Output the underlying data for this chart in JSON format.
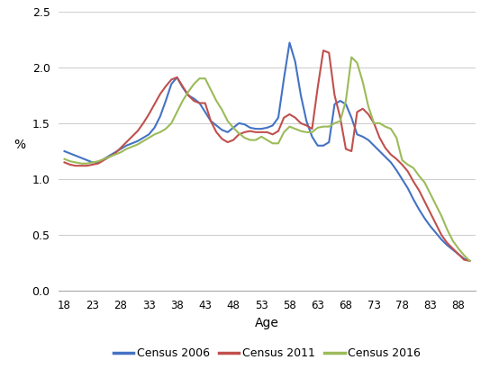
{
  "title": "",
  "xlabel": "Age",
  "ylabel": "%",
  "xlim": [
    17,
    91
  ],
  "ylim": [
    0,
    2.5
  ],
  "yticks": [
    0,
    0.5,
    1,
    1.5,
    2,
    2.5
  ],
  "xticks": [
    18,
    23,
    28,
    33,
    38,
    43,
    48,
    53,
    58,
    63,
    68,
    73,
    78,
    83,
    88
  ],
  "colors": {
    "census2006": "#4472C4",
    "census2011": "#C0504D",
    "census2016": "#9BBB59"
  },
  "legend": [
    "Census 2006",
    "Census 2011",
    "Census 2016"
  ],
  "census2006": {
    "ages": [
      18,
      19,
      20,
      21,
      22,
      23,
      24,
      25,
      26,
      27,
      28,
      29,
      30,
      31,
      32,
      33,
      34,
      35,
      36,
      37,
      38,
      39,
      40,
      41,
      42,
      43,
      44,
      45,
      46,
      47,
      48,
      49,
      50,
      51,
      52,
      53,
      54,
      55,
      56,
      57,
      58,
      59,
      60,
      61,
      62,
      63,
      64,
      65,
      66,
      67,
      68,
      69,
      70,
      71,
      72,
      73,
      74,
      75,
      76,
      77,
      78,
      79,
      80,
      81,
      82,
      83,
      84,
      85,
      86,
      87,
      88,
      89,
      90
    ],
    "values": [
      1.25,
      1.23,
      1.21,
      1.19,
      1.17,
      1.15,
      1.15,
      1.18,
      1.21,
      1.24,
      1.27,
      1.3,
      1.32,
      1.34,
      1.37,
      1.4,
      1.46,
      1.56,
      1.7,
      1.85,
      1.91,
      1.82,
      1.75,
      1.72,
      1.68,
      1.6,
      1.52,
      1.48,
      1.44,
      1.42,
      1.46,
      1.5,
      1.49,
      1.46,
      1.45,
      1.45,
      1.46,
      1.48,
      1.55,
      1.9,
      2.22,
      2.05,
      1.75,
      1.52,
      1.38,
      1.3,
      1.3,
      1.33,
      1.67,
      1.7,
      1.67,
      1.55,
      1.4,
      1.38,
      1.35,
      1.3,
      1.25,
      1.2,
      1.15,
      1.08,
      1.0,
      0.92,
      0.82,
      0.73,
      0.65,
      0.58,
      0.52,
      0.46,
      0.41,
      0.37,
      0.33,
      0.29,
      0.27
    ]
  },
  "census2011": {
    "ages": [
      18,
      19,
      20,
      21,
      22,
      23,
      24,
      25,
      26,
      27,
      28,
      29,
      30,
      31,
      32,
      33,
      34,
      35,
      36,
      37,
      38,
      39,
      40,
      41,
      42,
      43,
      44,
      45,
      46,
      47,
      48,
      49,
      50,
      51,
      52,
      53,
      54,
      55,
      56,
      57,
      58,
      59,
      60,
      61,
      62,
      63,
      64,
      65,
      66,
      67,
      68,
      69,
      70,
      71,
      72,
      73,
      74,
      75,
      76,
      77,
      78,
      79,
      80,
      81,
      82,
      83,
      84,
      85,
      86,
      87,
      88,
      89,
      90
    ],
    "values": [
      1.15,
      1.13,
      1.12,
      1.12,
      1.12,
      1.13,
      1.14,
      1.17,
      1.2,
      1.23,
      1.28,
      1.33,
      1.38,
      1.43,
      1.5,
      1.58,
      1.67,
      1.76,
      1.83,
      1.89,
      1.91,
      1.83,
      1.75,
      1.7,
      1.68,
      1.68,
      1.52,
      1.42,
      1.36,
      1.33,
      1.35,
      1.4,
      1.42,
      1.43,
      1.42,
      1.42,
      1.42,
      1.4,
      1.43,
      1.55,
      1.58,
      1.55,
      1.5,
      1.48,
      1.45,
      1.82,
      2.15,
      2.13,
      1.75,
      1.55,
      1.27,
      1.25,
      1.6,
      1.63,
      1.58,
      1.5,
      1.37,
      1.28,
      1.22,
      1.18,
      1.13,
      1.07,
      0.98,
      0.9,
      0.8,
      0.7,
      0.6,
      0.5,
      0.43,
      0.38,
      0.33,
      0.28,
      0.27
    ]
  },
  "census2016": {
    "ages": [
      18,
      19,
      20,
      21,
      22,
      23,
      24,
      25,
      26,
      27,
      28,
      29,
      30,
      31,
      32,
      33,
      34,
      35,
      36,
      37,
      38,
      39,
      40,
      41,
      42,
      43,
      44,
      45,
      46,
      47,
      48,
      49,
      50,
      51,
      52,
      53,
      54,
      55,
      56,
      57,
      58,
      59,
      60,
      61,
      62,
      63,
      64,
      65,
      66,
      67,
      68,
      69,
      70,
      71,
      72,
      73,
      74,
      75,
      76,
      77,
      78,
      79,
      80,
      81,
      82,
      83,
      84,
      85,
      86,
      87,
      88,
      89,
      90
    ],
    "values": [
      1.18,
      1.16,
      1.15,
      1.14,
      1.14,
      1.15,
      1.16,
      1.18,
      1.2,
      1.22,
      1.24,
      1.27,
      1.29,
      1.31,
      1.34,
      1.37,
      1.4,
      1.42,
      1.45,
      1.5,
      1.6,
      1.7,
      1.78,
      1.85,
      1.9,
      1.9,
      1.8,
      1.7,
      1.62,
      1.52,
      1.46,
      1.41,
      1.37,
      1.35,
      1.35,
      1.38,
      1.35,
      1.32,
      1.32,
      1.42,
      1.47,
      1.45,
      1.43,
      1.42,
      1.42,
      1.46,
      1.47,
      1.47,
      1.5,
      1.52,
      1.7,
      2.09,
      2.04,
      1.87,
      1.65,
      1.5,
      1.5,
      1.47,
      1.45,
      1.37,
      1.17,
      1.13,
      1.1,
      1.03,
      0.97,
      0.87,
      0.77,
      0.67,
      0.55,
      0.45,
      0.38,
      0.32,
      0.27
    ]
  }
}
